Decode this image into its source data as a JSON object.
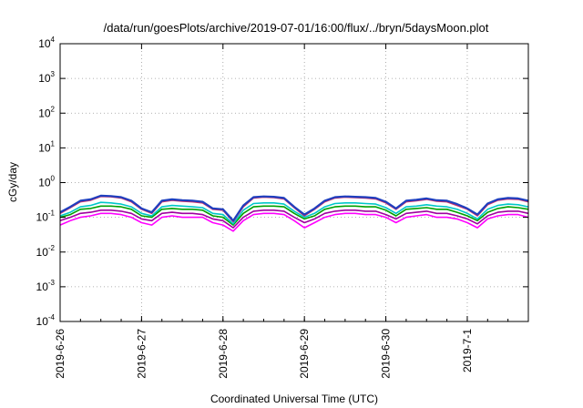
{
  "chart_data": {
    "type": "line",
    "title": "/data/run/goesPlots/archive/2019-07-01/16:00/flux/../bryn/5daysMoon.plot",
    "xlabel": "Coordinated Universal Time (UTC)",
    "ylabel": "cGy/day",
    "y_scale": "log",
    "ylim": [
      0.0001,
      10000
    ],
    "xlim": [
      "2019-06-26 00:00",
      "2019-07-01 18:00"
    ],
    "x_tick_labels": [
      "2019-6-26",
      "2019-6-27",
      "2019-6-28",
      "2019-6-29",
      "2019-6-30",
      "2019-7-1"
    ],
    "y_ticks": [
      {
        "base": "10",
        "exp": "4"
      },
      {
        "base": "10",
        "exp": "3"
      },
      {
        "base": "10",
        "exp": "2"
      },
      {
        "base": "10",
        "exp": "1"
      },
      {
        "base": "10",
        "exp": "0"
      },
      {
        "base": "10",
        "exp": "-1"
      },
      {
        "base": "10",
        "exp": "-2"
      },
      {
        "base": "10",
        "exp": "-3"
      },
      {
        "base": "10",
        "exp": "-4"
      }
    ],
    "grid": true,
    "legend": "none",
    "x": [
      "2019-06-26 00:00",
      "2019-06-26 03:00",
      "2019-06-26 06:00",
      "2019-06-26 09:00",
      "2019-06-26 12:00",
      "2019-06-26 15:00",
      "2019-06-26 18:00",
      "2019-06-26 21:00",
      "2019-06-27 00:00",
      "2019-06-27 03:00",
      "2019-06-27 06:00",
      "2019-06-27 09:00",
      "2019-06-27 12:00",
      "2019-06-27 15:00",
      "2019-06-27 18:00",
      "2019-06-27 21:00",
      "2019-06-28 00:00",
      "2019-06-28 03:00",
      "2019-06-28 06:00",
      "2019-06-28 09:00",
      "2019-06-28 12:00",
      "2019-06-28 15:00",
      "2019-06-28 18:00",
      "2019-06-28 21:00",
      "2019-06-29 00:00",
      "2019-06-29 03:00",
      "2019-06-29 06:00",
      "2019-06-29 09:00",
      "2019-06-29 12:00",
      "2019-06-29 15:00",
      "2019-06-29 18:00",
      "2019-06-29 21:00",
      "2019-06-30 00:00",
      "2019-06-30 03:00",
      "2019-06-30 06:00",
      "2019-06-30 09:00",
      "2019-06-30 12:00",
      "2019-06-30 15:00",
      "2019-06-30 18:00",
      "2019-06-30 21:00",
      "2019-07-01 00:00",
      "2019-07-01 03:00",
      "2019-07-01 06:00",
      "2019-07-01 09:00",
      "2019-07-01 12:00",
      "2019-07-01 15:00",
      "2019-07-01 18:00"
    ],
    "series": [
      {
        "color": "#1f3fbf",
        "values": [
          0.14,
          0.2,
          0.3,
          0.33,
          0.42,
          0.41,
          0.38,
          0.3,
          0.18,
          0.14,
          0.3,
          0.33,
          0.31,
          0.3,
          0.28,
          0.18,
          0.17,
          0.08,
          0.22,
          0.38,
          0.4,
          0.39,
          0.36,
          0.2,
          0.12,
          0.18,
          0.3,
          0.38,
          0.4,
          0.39,
          0.38,
          0.36,
          0.28,
          0.18,
          0.3,
          0.32,
          0.35,
          0.31,
          0.3,
          0.24,
          0.18,
          0.12,
          0.25,
          0.33,
          0.36,
          0.35,
          0.3
        ]
      },
      {
        "color": "#d0306a",
        "values": [
          0.13,
          0.19,
          0.28,
          0.31,
          0.4,
          0.39,
          0.36,
          0.28,
          0.17,
          0.13,
          0.28,
          0.31,
          0.29,
          0.28,
          0.26,
          0.17,
          0.16,
          0.075,
          0.2,
          0.36,
          0.38,
          0.37,
          0.34,
          0.19,
          0.11,
          0.17,
          0.28,
          0.36,
          0.38,
          0.37,
          0.36,
          0.34,
          0.26,
          0.17,
          0.28,
          0.3,
          0.33,
          0.29,
          0.28,
          0.22,
          0.17,
          0.11,
          0.23,
          0.31,
          0.34,
          0.33,
          0.28
        ]
      },
      {
        "color": "#00c8c8",
        "values": [
          0.11,
          0.14,
          0.2,
          0.22,
          0.27,
          0.26,
          0.24,
          0.2,
          0.13,
          0.11,
          0.2,
          0.22,
          0.21,
          0.2,
          0.19,
          0.13,
          0.12,
          0.065,
          0.16,
          0.25,
          0.26,
          0.26,
          0.24,
          0.15,
          0.1,
          0.13,
          0.2,
          0.25,
          0.26,
          0.26,
          0.25,
          0.24,
          0.19,
          0.13,
          0.2,
          0.21,
          0.23,
          0.21,
          0.2,
          0.17,
          0.13,
          0.09,
          0.17,
          0.22,
          0.24,
          0.23,
          0.2
        ]
      },
      {
        "color": "#00a000",
        "values": [
          0.1,
          0.12,
          0.17,
          0.18,
          0.21,
          0.21,
          0.2,
          0.17,
          0.11,
          0.1,
          0.17,
          0.18,
          0.17,
          0.17,
          0.16,
          0.11,
          0.1,
          0.06,
          0.13,
          0.2,
          0.21,
          0.21,
          0.2,
          0.13,
          0.09,
          0.11,
          0.17,
          0.2,
          0.21,
          0.21,
          0.2,
          0.2,
          0.16,
          0.11,
          0.17,
          0.18,
          0.19,
          0.17,
          0.17,
          0.14,
          0.11,
          0.08,
          0.14,
          0.18,
          0.2,
          0.19,
          0.17
        ]
      },
      {
        "color": "#a000a0",
        "values": [
          0.08,
          0.1,
          0.13,
          0.14,
          0.16,
          0.16,
          0.15,
          0.13,
          0.09,
          0.08,
          0.13,
          0.14,
          0.13,
          0.13,
          0.12,
          0.09,
          0.08,
          0.05,
          0.1,
          0.15,
          0.16,
          0.16,
          0.15,
          0.1,
          0.07,
          0.09,
          0.13,
          0.15,
          0.16,
          0.16,
          0.15,
          0.15,
          0.12,
          0.09,
          0.13,
          0.14,
          0.15,
          0.13,
          0.13,
          0.11,
          0.09,
          0.065,
          0.11,
          0.14,
          0.15,
          0.15,
          0.13
        ]
      },
      {
        "color": "#ff00ff",
        "values": [
          0.06,
          0.08,
          0.1,
          0.11,
          0.13,
          0.13,
          0.12,
          0.1,
          0.07,
          0.06,
          0.1,
          0.11,
          0.1,
          0.1,
          0.1,
          0.07,
          0.06,
          0.04,
          0.08,
          0.12,
          0.13,
          0.13,
          0.12,
          0.08,
          0.05,
          0.07,
          0.1,
          0.12,
          0.13,
          0.13,
          0.12,
          0.12,
          0.1,
          0.07,
          0.1,
          0.11,
          0.12,
          0.1,
          0.1,
          0.09,
          0.07,
          0.05,
          0.09,
          0.11,
          0.12,
          0.12,
          0.1
        ]
      }
    ]
  }
}
